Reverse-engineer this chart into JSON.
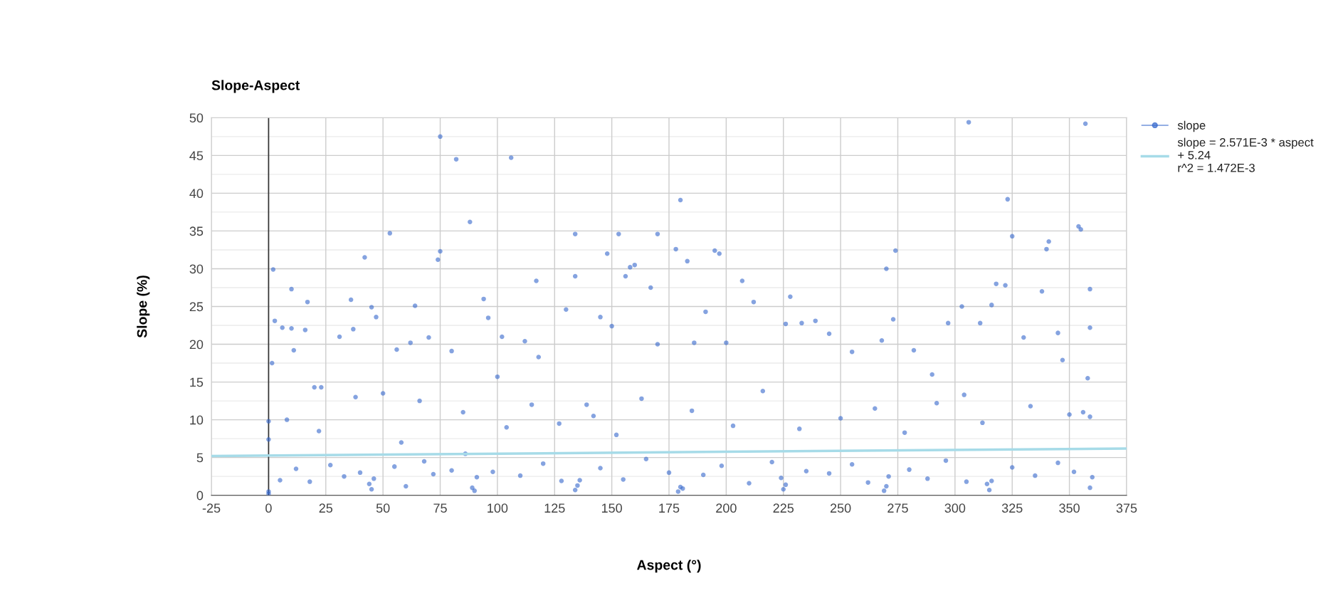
{
  "chart_data": {
    "type": "scatter",
    "title": "Slope-Aspect",
    "xlabel": "Aspect (°)",
    "ylabel": "Slope (%)",
    "xlim": [
      -25,
      375
    ],
    "xticks": [
      -25,
      0,
      25,
      50,
      75,
      100,
      125,
      150,
      175,
      200,
      225,
      250,
      275,
      300,
      325,
      350,
      375
    ],
    "ylim": [
      0,
      50
    ],
    "yticks": [
      0,
      5,
      10,
      15,
      20,
      25,
      30,
      35,
      40,
      45,
      50
    ],
    "grid": true,
    "legend": "right",
    "marker": "circle",
    "ref_lines": [
      {
        "axis": "x",
        "value": 0,
        "color": "#333333"
      }
    ],
    "series": [
      {
        "name": "slope",
        "color": "#3366cc",
        "x": [
          1.5,
          2,
          2.7,
          0,
          0,
          0,
          0,
          6,
          10,
          11,
          10,
          17,
          16,
          20,
          23,
          31,
          36,
          37,
          42,
          45,
          47,
          50,
          53,
          56,
          62,
          64,
          70,
          75,
          74,
          75,
          82,
          80,
          88,
          94,
          96,
          100,
          102,
          106,
          112,
          117,
          118,
          130,
          134,
          134,
          139,
          145,
          148,
          150,
          153,
          156,
          158,
          160,
          167,
          170,
          170,
          178,
          180,
          183,
          186,
          191,
          195,
          197,
          200,
          207,
          212,
          228,
          226,
          233,
          239,
          245,
          255,
          268,
          270,
          274,
          273,
          282,
          290,
          297,
          303,
          304,
          306,
          311,
          316,
          318,
          322,
          323,
          325,
          330,
          338,
          340,
          341,
          345,
          347,
          354,
          355,
          357,
          359,
          359,
          358,
          356,
          359,
          5,
          12,
          18,
          27,
          33,
          40,
          44,
          45,
          46,
          55,
          60,
          68,
          72,
          80,
          86,
          89,
          90,
          91,
          98,
          110,
          120,
          128,
          134,
          135,
          136,
          145,
          155,
          165,
          175,
          179,
          180,
          181,
          190,
          198,
          210,
          220,
          224,
          225,
          226,
          235,
          245,
          255,
          262,
          269,
          270,
          271,
          280,
          288,
          296,
          305,
          314,
          315,
          316,
          325,
          335,
          345,
          352,
          359,
          360,
          8,
          22,
          38,
          58,
          66,
          85,
          104,
          115,
          127,
          142,
          152,
          163,
          185,
          203,
          216,
          232,
          250,
          265,
          278,
          292,
          312,
          333,
          350
        ],
        "values": [
          17.5,
          29.9,
          23.1,
          9.8,
          7.4,
          0.2,
          0.5,
          22.2,
          27.3,
          19.2,
          22.1,
          25.6,
          21.9,
          14.3,
          14.3,
          21,
          25.9,
          22,
          31.5,
          24.9,
          23.6,
          13.5,
          34.7,
          19.3,
          20.2,
          25.1,
          20.9,
          47.5,
          31.2,
          32.3,
          44.5,
          19.1,
          36.2,
          26,
          23.5,
          15.7,
          21,
          44.7,
          20.4,
          28.4,
          18.3,
          24.6,
          34.6,
          29,
          12,
          23.6,
          32,
          22.4,
          34.6,
          29,
          30.2,
          30.5,
          27.5,
          34.6,
          20,
          32.6,
          39.1,
          31,
          20.2,
          24.3,
          32.4,
          32,
          20.2,
          28.4,
          25.6,
          26.3,
          22.7,
          22.8,
          23.1,
          21.4,
          19,
          20.5,
          30,
          32.4,
          23.3,
          19.2,
          16,
          22.8,
          25,
          13.3,
          49.4,
          22.8,
          25.2,
          28,
          27.8,
          39.2,
          34.3,
          20.9,
          27,
          32.6,
          33.6,
          21.5,
          17.9,
          35.6,
          35.2,
          49.2,
          27.3,
          22.2,
          15.5,
          11,
          10.4,
          2,
          3.5,
          1.8,
          4,
          2.5,
          3,
          1.5,
          0.8,
          2.2,
          3.8,
          1.2,
          4.5,
          2.8,
          3.3,
          5.5,
          1,
          0.6,
          2.4,
          3.1,
          2.6,
          4.2,
          1.9,
          0.7,
          1.3,
          2,
          3.6,
          2.1,
          4.8,
          3,
          0.5,
          1.1,
          0.9,
          2.7,
          3.9,
          1.6,
          4.4,
          2.3,
          0.8,
          1.4,
          3.2,
          2.9,
          4.1,
          1.7,
          0.6,
          1.2,
          2.5,
          3.4,
          2.2,
          4.6,
          1.8,
          1.5,
          0.7,
          1.9,
          3.7,
          2.6,
          4.3,
          3.1,
          1,
          2.4,
          10,
          8.5,
          13,
          7,
          12.5,
          11,
          9,
          12,
          9.5,
          10.5,
          8,
          12.8,
          11.2,
          9.2,
          13.8,
          8.8,
          10.2,
          11.5,
          8.3,
          12.2,
          9.6,
          11.8,
          10.7
        ]
      },
      {
        "name": "slope = 2.571E-3 * aspect\n+ 5.24\nr^2 = 1.472E-3",
        "type": "line",
        "color": "#a6dbe8",
        "marker": "none",
        "x": [
          -25,
          375
        ],
        "values": [
          5.2,
          6.2
        ]
      }
    ]
  }
}
